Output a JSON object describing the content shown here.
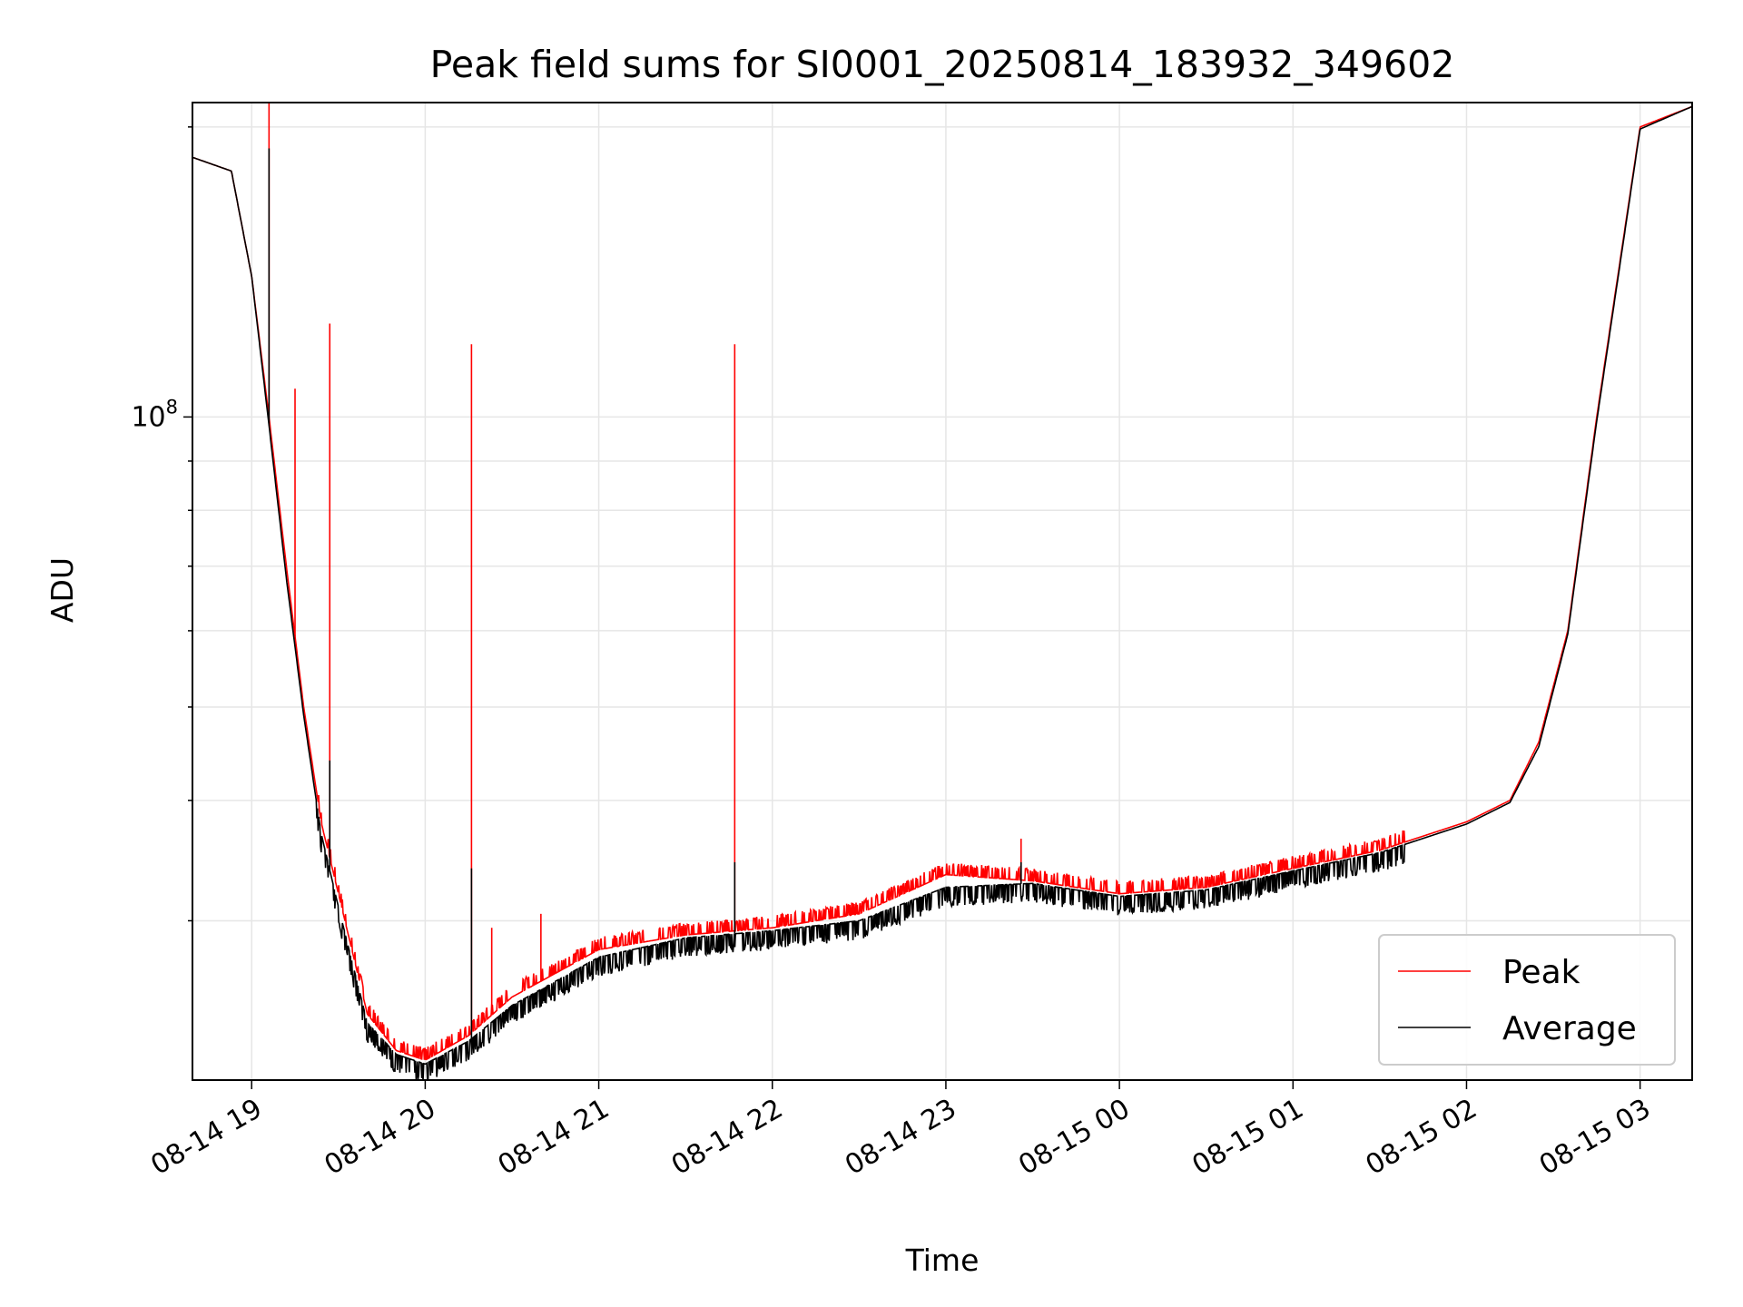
{
  "chart_data": {
    "type": "line",
    "title": "Peak field sums for SI0001_20250814_183932_349602",
    "xlabel": "Time",
    "ylabel": "ADU",
    "y_scale": "log",
    "ylim": [
      20500000,
      212000000
    ],
    "xlim": [
      "2025-08-14 18:39:32",
      "2025-08-15 03:18:00"
    ],
    "x_ticks": [
      "08-14 19",
      "08-14 20",
      "08-14 21",
      "08-14 22",
      "08-14 23",
      "08-15 00",
      "08-15 01",
      "08-15 02",
      "08-15 03"
    ],
    "y_ticks": [
      "10^8"
    ],
    "grid": true,
    "legend_position": "lower right",
    "series": [
      {
        "name": "Peak",
        "color": "#ff0000",
        "x": [
          "2025-08-14 18:39:32",
          "2025-08-14 18:53:00",
          "2025-08-14 19:00:00",
          "2025-08-14 19:06:00",
          "2025-08-14 19:12:00",
          "2025-08-14 19:18:00",
          "2025-08-14 19:24:00",
          "2025-08-14 19:30:00",
          "2025-08-14 19:40:00",
          "2025-08-14 19:50:00",
          "2025-08-14 20:00:00",
          "2025-08-14 20:15:00",
          "2025-08-14 20:30:00",
          "2025-08-14 21:00:00",
          "2025-08-14 21:30:00",
          "2025-08-14 22:00:00",
          "2025-08-14 22:30:00",
          "2025-08-14 23:00:00",
          "2025-08-14 23:30:00",
          "2025-08-15 00:00:00",
          "2025-08-15 00:30:00",
          "2025-08-15 01:00:00",
          "2025-08-15 01:30:00",
          "2025-08-15 02:00:00",
          "2025-08-15 02:15:00",
          "2025-08-15 02:25:00",
          "2025-08-15 02:35:00",
          "2025-08-15 02:45:00",
          "2025-08-15 03:00:00",
          "2025-08-15 03:18:00"
        ],
        "y": [
          186000000,
          180000000,
          140000000,
          100000000,
          70000000,
          50000000,
          38000000,
          32000000,
          24000000,
          22000000,
          21500000,
          22800000,
          25000000,
          28000000,
          29000000,
          29500000,
          30500000,
          33500000,
          33000000,
          32000000,
          32500000,
          34000000,
          35500000,
          38000000,
          40000000,
          46000000,
          60000000,
          100000000,
          200000000,
          210000000
        ],
        "spikes": [
          {
            "x": "2025-08-14 19:06:00",
            "y": 215000000
          },
          {
            "x": "2025-08-14 19:15:00",
            "y": 107000000
          },
          {
            "x": "2025-08-14 19:27:00",
            "y": 125000000
          },
          {
            "x": "2025-08-14 20:16:00",
            "y": 119000000
          },
          {
            "x": "2025-08-14 20:23:00",
            "y": 29500000
          },
          {
            "x": "2025-08-14 20:40:00",
            "y": 30500000
          },
          {
            "x": "2025-08-14 21:47:00",
            "y": 119000000
          },
          {
            "x": "2025-08-14 23:26:00",
            "y": 36500000
          }
        ]
      },
      {
        "name": "Average",
        "color": "#000000",
        "x": [
          "2025-08-14 18:39:32",
          "2025-08-14 18:53:00",
          "2025-08-14 19:00:00",
          "2025-08-14 19:06:00",
          "2025-08-14 19:12:00",
          "2025-08-14 19:18:00",
          "2025-08-14 19:24:00",
          "2025-08-14 19:30:00",
          "2025-08-14 19:40:00",
          "2025-08-14 19:50:00",
          "2025-08-14 20:00:00",
          "2025-08-14 20:15:00",
          "2025-08-14 20:30:00",
          "2025-08-14 21:00:00",
          "2025-08-14 21:30:00",
          "2025-08-14 22:00:00",
          "2025-08-14 22:30:00",
          "2025-08-14 23:00:00",
          "2025-08-14 23:30:00",
          "2025-08-15 00:00:00",
          "2025-08-15 00:30:00",
          "2025-08-15 01:00:00",
          "2025-08-15 01:30:00",
          "2025-08-15 02:00:00",
          "2025-08-15 02:15:00",
          "2025-08-15 02:25:00",
          "2025-08-15 02:35:00",
          "2025-08-15 02:45:00",
          "2025-08-15 03:00:00",
          "2025-08-15 03:18:00"
        ],
        "y": [
          186000000,
          180000000,
          140000000,
          98000000,
          68000000,
          49000000,
          37000000,
          31000000,
          23500000,
          21800000,
          21300000,
          22500000,
          24500000,
          27500000,
          28800000,
          29300000,
          30000000,
          32500000,
          32800000,
          31800000,
          32300000,
          33800000,
          35300000,
          37800000,
          39800000,
          45500000,
          59500000,
          99000000,
          199000000,
          210000000
        ],
        "spikes": [
          {
            "x": "2025-08-14 19:06:00",
            "y": 190000000
          },
          {
            "x": "2025-08-14 19:27:00",
            "y": 44000000
          },
          {
            "x": "2025-08-14 20:16:00",
            "y": 34000000
          },
          {
            "x": "2025-08-14 21:47:00",
            "y": 34500000
          },
          {
            "x": "2025-08-14 23:26:00",
            "y": 34500000
          }
        ]
      }
    ]
  }
}
